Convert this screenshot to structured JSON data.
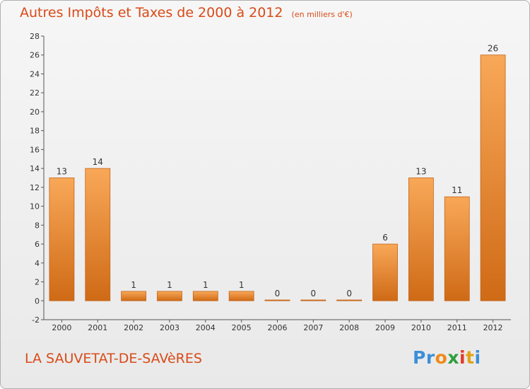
{
  "header": {
    "title": "Autres Impôts et Taxes de 2000 à 2012",
    "unit": "(en milliers d'€)"
  },
  "footer": {
    "commune": "LA SAUVETAT-DE-SAVèRES",
    "logo_letters": [
      "P",
      "r",
      "o",
      "x",
      "i",
      "t",
      "i"
    ],
    "logo_colors": [
      "#3c8fd8",
      "#3c8fd8",
      "#f08a1a",
      "#2e9e3e",
      "#e23b2b",
      "#e2a21b",
      "#3c8fd8"
    ]
  },
  "colors": {
    "bar_top": "#f8a858",
    "bar_bottom": "#cf6a16",
    "bar_edge": "#c2651c",
    "axis": "#555555",
    "grid": "#cccccc",
    "title": "#d94a18"
  },
  "chart_data": {
    "type": "bar",
    "categories": [
      "2000",
      "2001",
      "2002",
      "2003",
      "2004",
      "2005",
      "2006",
      "2007",
      "2008",
      "2009",
      "2010",
      "2011",
      "2012"
    ],
    "values": [
      13,
      14,
      1,
      1,
      1,
      1,
      0,
      0,
      0,
      6,
      13,
      11,
      26
    ],
    "data_labels": [
      "13",
      "14",
      "1",
      "1",
      "1",
      "1",
      "0",
      "0",
      "0",
      "6",
      "13",
      "11",
      "26"
    ],
    "title": "Autres Impôts et Taxes de 2000 à 2012",
    "xlabel": "",
    "ylabel": "",
    "ylim": [
      -2,
      28
    ],
    "yticks": [
      -2,
      0,
      2,
      4,
      6,
      8,
      10,
      12,
      14,
      16,
      18,
      20,
      22,
      24,
      26,
      28
    ],
    "grid": false,
    "legend": "none"
  }
}
